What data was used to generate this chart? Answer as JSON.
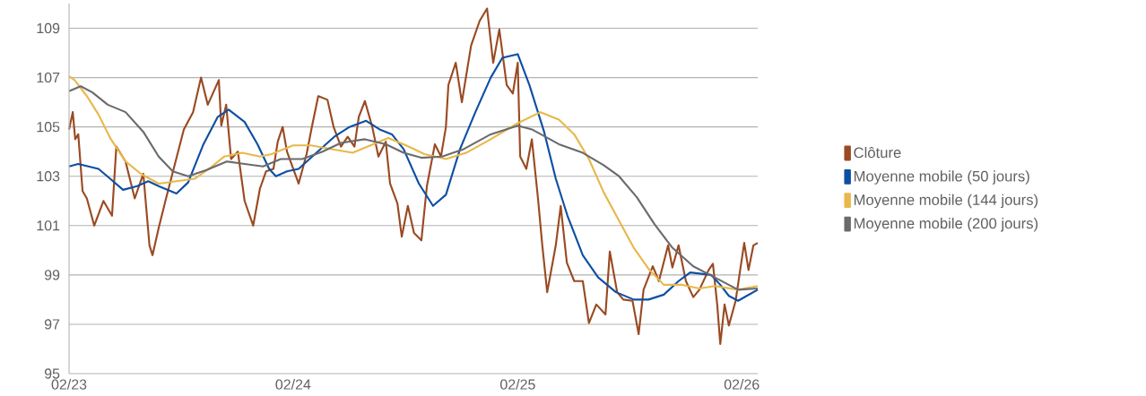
{
  "chart_data": {
    "type": "line",
    "xlim": [
      "2023-02-01",
      "2026-02-27"
    ],
    "ylim": [
      95,
      110
    ],
    "xticks": [
      {
        "value": "2023-02-01",
        "label": "02/23"
      },
      {
        "value": "2024-02-01",
        "label": "02/24"
      },
      {
        "value": "2025-02-01",
        "label": "02/25"
      },
      {
        "value": "2026-02-01",
        "label": "02/26"
      }
    ],
    "yticks": [
      95,
      97,
      99,
      101,
      103,
      105,
      107,
      109
    ],
    "grid": "y",
    "legend": "right",
    "line_style": "solid",
    "marker": "none",
    "series": [
      {
        "name": "Clôture",
        "color": "#9a4a22",
        "x": [
          "2023-02-01",
          "2023-02-07",
          "2023-02-11",
          "2023-02-16",
          "2023-02-23",
          "2023-03-02",
          "2023-03-14",
          "2023-03-29",
          "2023-04-12",
          "2023-04-19",
          "2023-05-04",
          "2023-05-19",
          "2023-06-02",
          "2023-06-12",
          "2023-06-17",
          "2023-06-27",
          "2023-07-09",
          "2023-07-23",
          "2023-08-07",
          "2023-08-22",
          "2023-09-04",
          "2023-09-15",
          "2023-10-03",
          "2023-10-07",
          "2023-10-15",
          "2023-10-23",
          "2023-11-03",
          "2023-11-14",
          "2023-11-28",
          "2023-12-09",
          "2023-12-19",
          "2023-12-31",
          "2024-01-07",
          "2024-01-15",
          "2024-01-22",
          "2024-02-10",
          "2024-02-23",
          "2024-03-03",
          "2024-03-13",
          "2024-03-28",
          "2024-04-07",
          "2024-04-19",
          "2024-04-30",
          "2024-05-11",
          "2024-05-18",
          "2024-05-28",
          "2024-06-09",
          "2024-06-19",
          "2024-07-01",
          "2024-07-08",
          "2024-07-20",
          "2024-07-27",
          "2024-08-06",
          "2024-08-16",
          "2024-08-28",
          "2024-09-06",
          "2024-09-19",
          "2024-09-29",
          "2024-10-07",
          "2024-10-11",
          "2024-10-23",
          "2024-11-02",
          "2024-11-17",
          "2024-12-01",
          "2024-12-13",
          "2024-12-23",
          "2025-01-02",
          "2025-01-14",
          "2025-01-24",
          "2025-02-01",
          "2025-02-05",
          "2025-02-15",
          "2025-02-24",
          "2025-03-06",
          "2025-03-13",
          "2025-03-21",
          "2025-04-04",
          "2025-04-12",
          "2025-04-22",
          "2025-05-04",
          "2025-05-18",
          "2025-05-28",
          "2025-06-09",
          "2025-06-24",
          "2025-07-01",
          "2025-07-13",
          "2025-07-23",
          "2025-08-07",
          "2025-08-17",
          "2025-08-25",
          "2025-09-09",
          "2025-09-19",
          "2025-10-04",
          "2025-10-11",
          "2025-10-21",
          "2025-11-02",
          "2025-11-14",
          "2025-11-24",
          "2025-12-09",
          "2025-12-16",
          "2025-12-23",
          "2025-12-28",
          "2026-01-04",
          "2026-01-11",
          "2026-01-22",
          "2026-01-30",
          "2026-02-05",
          "2026-02-12",
          "2026-02-20",
          "2026-02-27"
        ],
        "values": [
          104.9,
          105.6,
          104.5,
          104.7,
          102.4,
          102.1,
          101.0,
          102.0,
          101.4,
          104.2,
          103.6,
          102.1,
          103.1,
          100.2,
          99.8,
          100.9,
          102.1,
          103.45,
          104.9,
          105.6,
          107.0,
          105.9,
          106.9,
          105.05,
          105.9,
          103.7,
          104.0,
          102.0,
          101.0,
          102.5,
          103.2,
          103.3,
          104.4,
          105.0,
          104.0,
          102.7,
          103.9,
          105.05,
          106.25,
          106.1,
          105.0,
          104.2,
          104.6,
          104.2,
          105.4,
          106.05,
          105.0,
          103.8,
          104.4,
          102.7,
          101.9,
          100.55,
          101.8,
          100.7,
          100.4,
          102.6,
          104.3,
          103.8,
          105.0,
          106.7,
          107.6,
          106.0,
          108.3,
          109.3,
          109.8,
          107.6,
          108.95,
          106.7,
          106.35,
          107.6,
          103.8,
          103.3,
          104.5,
          102.1,
          100.2,
          98.3,
          100.2,
          101.8,
          99.5,
          98.75,
          98.75,
          97.05,
          97.8,
          97.4,
          99.95,
          98.3,
          98.0,
          97.95,
          96.6,
          98.4,
          99.35,
          98.75,
          100.2,
          99.3,
          100.2,
          98.75,
          98.1,
          98.4,
          99.2,
          99.45,
          97.8,
          96.2,
          97.8,
          96.95,
          97.95,
          99.3,
          100.3,
          99.2,
          100.2,
          100.3
        ]
      },
      {
        "name": "Moyenne mobile (50 jours)",
        "color": "#0d4fa3",
        "x": [
          "2023-02-01",
          "2023-02-16",
          "2023-03-21",
          "2023-04-09",
          "2023-04-30",
          "2023-05-23",
          "2023-06-10",
          "2023-06-27",
          "2023-07-26",
          "2023-08-14",
          "2023-09-08",
          "2023-10-01",
          "2023-10-19",
          "2023-11-14",
          "2023-12-05",
          "2023-12-24",
          "2024-01-04",
          "2024-01-22",
          "2024-02-10",
          "2024-03-10",
          "2024-04-08",
          "2024-05-03",
          "2024-05-30",
          "2024-06-21",
          "2024-07-11",
          "2024-07-30",
          "2024-08-24",
          "2024-09-16",
          "2024-10-07",
          "2024-10-30",
          "2024-11-24",
          "2024-12-19",
          "2025-01-07",
          "2025-02-01",
          "2025-02-20",
          "2025-03-16",
          "2025-04-04",
          "2025-04-23",
          "2025-05-18",
          "2025-06-12",
          "2025-07-11",
          "2025-08-09",
          "2025-09-02",
          "2025-09-27",
          "2025-10-21",
          "2025-11-09",
          "2025-12-13",
          "2025-12-28",
          "2026-01-11",
          "2026-01-26",
          "2026-02-09",
          "2026-02-27"
        ],
        "values": [
          103.4,
          103.5,
          103.3,
          102.9,
          102.45,
          102.6,
          102.8,
          102.6,
          102.3,
          102.75,
          104.3,
          105.4,
          105.7,
          105.2,
          104.3,
          103.3,
          103.0,
          103.2,
          103.3,
          103.95,
          104.6,
          105.0,
          105.25,
          104.9,
          104.7,
          104.1,
          102.7,
          101.8,
          102.25,
          104.1,
          105.6,
          107.0,
          107.8,
          107.95,
          106.7,
          104.8,
          102.9,
          101.4,
          99.8,
          98.9,
          98.3,
          98.0,
          98.0,
          98.2,
          98.75,
          99.1,
          99.0,
          98.6,
          98.15,
          97.95,
          98.15,
          98.4
        ]
      },
      {
        "name": "Moyenne mobile (144 jours)",
        "color": "#e8b84a",
        "x": [
          "2023-02-01",
          "2023-02-10",
          "2023-03-02",
          "2023-03-21",
          "2023-04-09",
          "2023-05-04",
          "2023-05-29",
          "2023-06-27",
          "2023-07-26",
          "2023-08-25",
          "2023-09-17",
          "2023-10-12",
          "2023-11-10",
          "2023-12-09",
          "2023-12-28",
          "2024-02-01",
          "2024-03-01",
          "2024-04-04",
          "2024-05-08",
          "2024-06-06",
          "2024-07-05",
          "2024-08-03",
          "2024-09-02",
          "2024-10-07",
          "2024-11-09",
          "2024-12-19",
          "2025-02-01",
          "2025-03-10",
          "2025-04-09",
          "2025-05-04",
          "2025-05-28",
          "2025-06-21",
          "2025-07-16",
          "2025-08-09",
          "2025-09-02",
          "2025-09-27",
          "2025-10-26",
          "2025-11-24",
          "2025-12-19",
          "2026-01-26",
          "2026-02-27"
        ],
        "values": [
          107.05,
          106.9,
          106.25,
          105.5,
          104.55,
          103.6,
          103.1,
          102.7,
          102.8,
          102.9,
          103.3,
          103.8,
          103.95,
          103.8,
          103.9,
          104.25,
          104.25,
          104.1,
          103.95,
          104.25,
          104.55,
          104.25,
          103.9,
          103.7,
          103.95,
          104.5,
          105.15,
          105.6,
          105.3,
          104.7,
          103.7,
          102.35,
          101.2,
          100.1,
          99.25,
          98.6,
          98.6,
          98.45,
          98.55,
          98.4,
          98.55
        ]
      },
      {
        "name": "Moyenne mobile (200 jours)",
        "color": "#6b6b6b",
        "x": [
          "2023-02-01",
          "2023-02-20",
          "2023-03-11",
          "2023-04-05",
          "2023-05-04",
          "2023-06-02",
          "2023-06-27",
          "2023-07-20",
          "2023-08-14",
          "2023-09-13",
          "2023-10-16",
          "2023-11-14",
          "2023-12-14",
          "2024-01-12",
          "2024-02-16",
          "2024-03-20",
          "2024-04-19",
          "2024-05-28",
          "2024-07-01",
          "2024-07-30",
          "2024-08-28",
          "2024-10-01",
          "2024-11-05",
          "2024-12-19",
          "2025-02-01",
          "2025-02-24",
          "2025-04-09",
          "2025-05-18",
          "2025-06-21",
          "2025-07-16",
          "2025-08-14",
          "2025-09-12",
          "2025-10-11",
          "2025-11-14",
          "2025-12-19",
          "2026-01-26",
          "2026-02-27"
        ],
        "values": [
          106.45,
          106.65,
          106.4,
          105.9,
          105.6,
          104.8,
          103.8,
          103.2,
          103.0,
          103.25,
          103.6,
          103.5,
          103.4,
          103.7,
          103.7,
          104.0,
          104.35,
          104.5,
          104.3,
          103.95,
          103.75,
          103.8,
          104.1,
          104.7,
          105.05,
          104.9,
          104.3,
          103.95,
          103.45,
          103.0,
          102.15,
          101.05,
          100.1,
          99.35,
          98.9,
          98.4,
          98.45
        ]
      }
    ]
  }
}
